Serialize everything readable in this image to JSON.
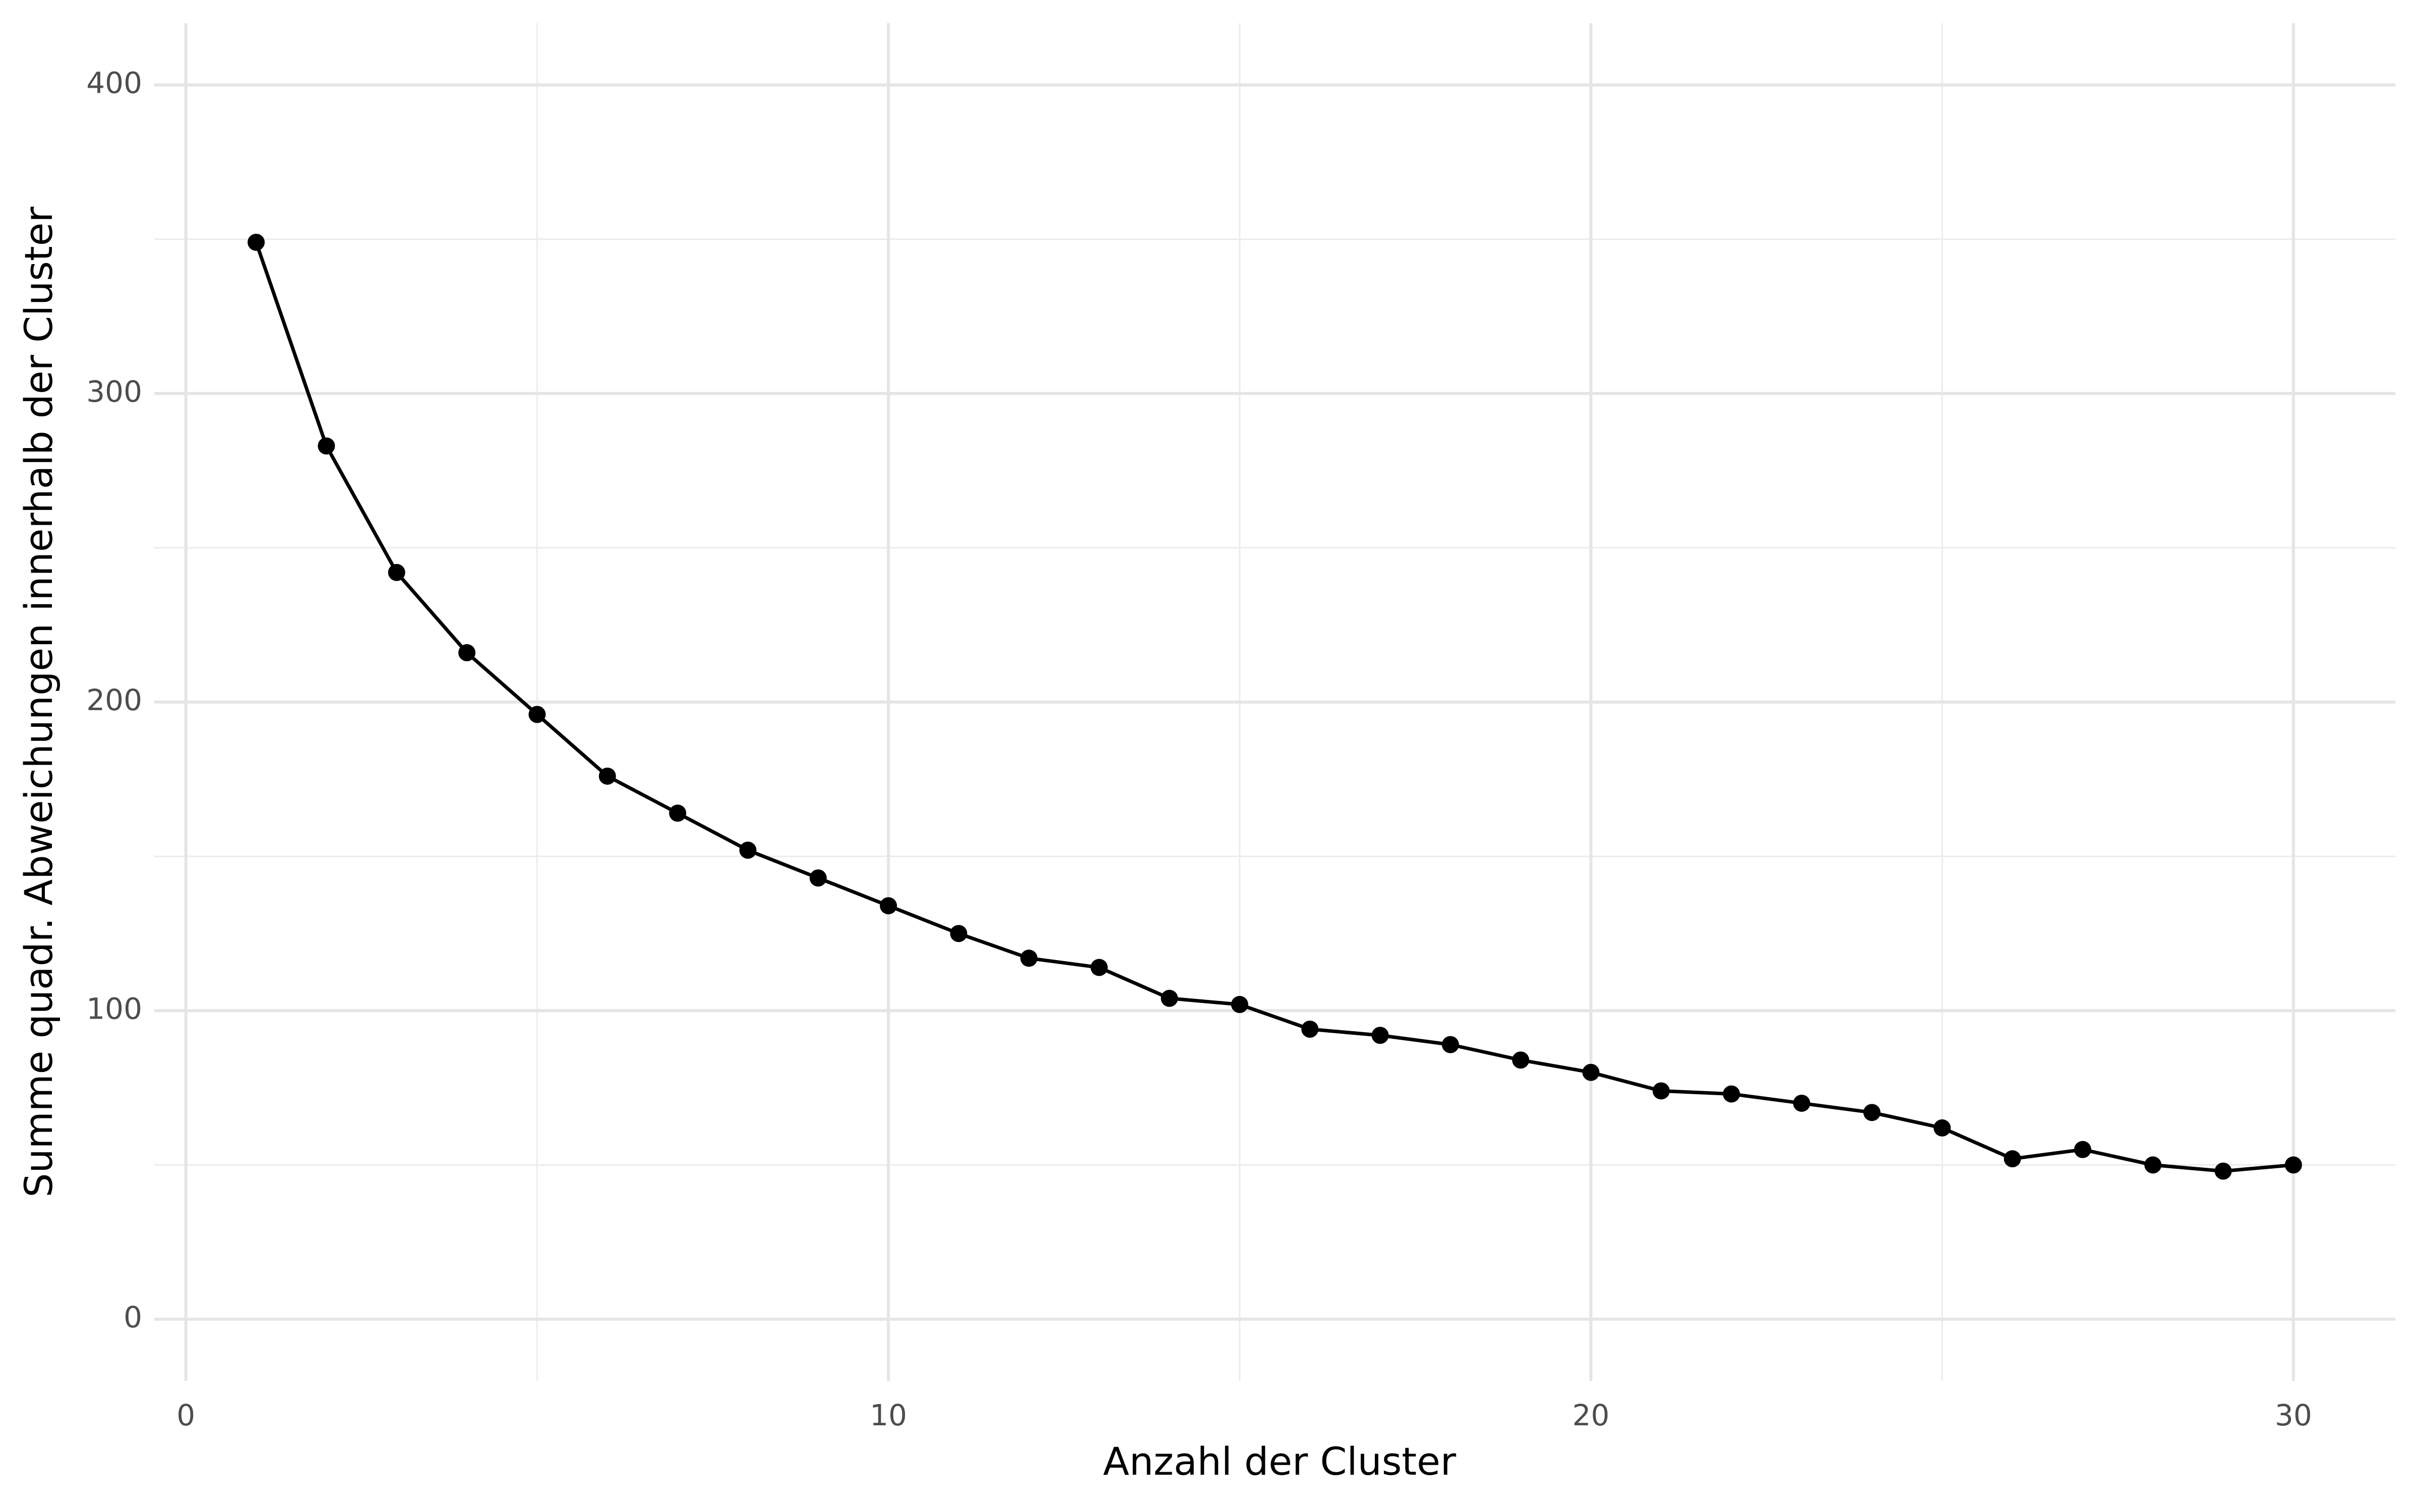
{
  "chart_data": {
    "type": "line",
    "x_label": "Anzahl der Cluster",
    "y_label": "Summe quadr. Abweichungen innerhalb der Cluster",
    "x": [
      1,
      2,
      3,
      4,
      5,
      6,
      7,
      8,
      9,
      10,
      11,
      12,
      13,
      14,
      15,
      16,
      17,
      18,
      19,
      20,
      21,
      22,
      23,
      24,
      25,
      26,
      27,
      28,
      29,
      30
    ],
    "series": [
      {
        "color": "#000000",
        "values": [
          349,
          283,
          242,
          216,
          196,
          176,
          164,
          152,
          143,
          134,
          125,
          117,
          114,
          104,
          102,
          94,
          92,
          89,
          84,
          80,
          74,
          73,
          70,
          67,
          62,
          52,
          55,
          50,
          48,
          50
        ]
      }
    ],
    "markers": true,
    "xlim": [
      -0.45,
      31.45
    ],
    "ylim": [
      -20,
      420
    ],
    "xticks": [
      0,
      10,
      20,
      30
    ],
    "yticks": [
      0,
      100,
      200,
      300,
      400
    ],
    "x_minor_grid": [
      5,
      15,
      25
    ],
    "y_minor_grid": [
      50,
      150,
      250,
      350
    ],
    "grid": true
  }
}
